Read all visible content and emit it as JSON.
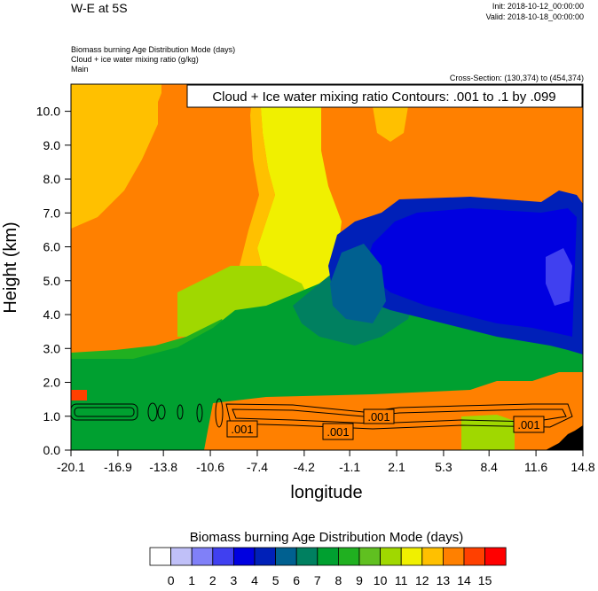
{
  "header": {
    "title": "W-E at 5S",
    "init": "Init: 2018-10-12_00:00:00",
    "valid": "Valid: 2018-10-18_00:00:00",
    "field1": "Biomass burning Age Distribution Mode   (days)",
    "field2": "Cloud + ice water mixing ratio   (g/kg)",
    "field3": "Main",
    "cross_section": "Cross-Section: (130,374) to (454,374)"
  },
  "chart_data": {
    "type": "heatmap",
    "xlabel": "longitude",
    "ylabel": "Height (km)",
    "x_ticks": [
      "-20.1",
      "-16.9",
      "-13.8",
      "-10.6",
      "-7.4",
      "-4.2",
      "-1.1",
      "2.1",
      "5.3",
      "8.4",
      "11.6",
      "14.8"
    ],
    "y_ticks": [
      "0.0",
      "1.0",
      "2.0",
      "3.0",
      "4.0",
      "5.0",
      "6.0",
      "7.0",
      "8.0",
      "9.0",
      "10.0"
    ],
    "xlim": [
      -20.1,
      14.8
    ],
    "ylim": [
      0,
      10.8
    ],
    "contour_title": "Cloud + Ice water mixing ratio Contours: .001 to .1 by .099",
    "contour_labels": [
      ".001",
      ".001",
      ".001",
      ".001"
    ],
    "colorbar": {
      "title": "Biomass burning Age Distribution Mode  (days)",
      "labels": [
        "0",
        "1",
        "2",
        "3",
        "4",
        "5",
        "6",
        "7",
        "8",
        "9",
        "10",
        "11",
        "12",
        "13",
        "14",
        "15"
      ],
      "colors": [
        "#ffffff",
        "#c0c0f8",
        "#8080f8",
        "#4040f0",
        "#0000e0",
        "#0020b8",
        "#006090",
        "#008060",
        "#00a030",
        "#20b020",
        "#60c020",
        "#a0d800",
        "#f0f000",
        "#ffc000",
        "#ff8000",
        "#ff4000",
        "#ff0000"
      ]
    },
    "regions": [
      {
        "category": "13",
        "color": "#ffc000",
        "x": [
          -20.1,
          -13.0
        ],
        "y": [
          6.5,
          10.8
        ]
      },
      {
        "category": "14",
        "color": "#ff8000",
        "x": [
          -20.1,
          14.8
        ],
        "y": [
          0.0,
          10.8
        ]
      },
      {
        "category": "12",
        "color": "#f0f000",
        "x": [
          -5.5,
          -1.0
        ],
        "y": [
          5.5,
          10.8
        ]
      },
      {
        "category": "11",
        "color": "#a0d800",
        "x": [
          -9.5,
          -4.0
        ],
        "y": [
          3.8,
          5.5
        ]
      },
      {
        "category": "9",
        "color": "#20b020",
        "x": [
          -20.1,
          -11.0
        ],
        "y": [
          1.4,
          2.8
        ]
      },
      {
        "category": "8",
        "color": "#00a030",
        "x": [
          -20.1,
          14.0
        ],
        "y": [
          0.4,
          3.8
        ]
      },
      {
        "category": "7",
        "color": "#008060",
        "x": [
          -4.0,
          4.0
        ],
        "y": [
          3.0,
          5.5
        ]
      },
      {
        "category": "5",
        "color": "#0020b8",
        "x": [
          -2.0,
          14.0
        ],
        "y": [
          3.5,
          7.3
        ]
      },
      {
        "category": "4",
        "color": "#0000e0",
        "x": [
          0.0,
          12.5
        ],
        "y": [
          4.0,
          7.0
        ]
      },
      {
        "category": "6",
        "color": "#006090",
        "x": [
          -2.5,
          2.0
        ],
        "y": [
          3.8,
          5.5
        ]
      }
    ]
  }
}
